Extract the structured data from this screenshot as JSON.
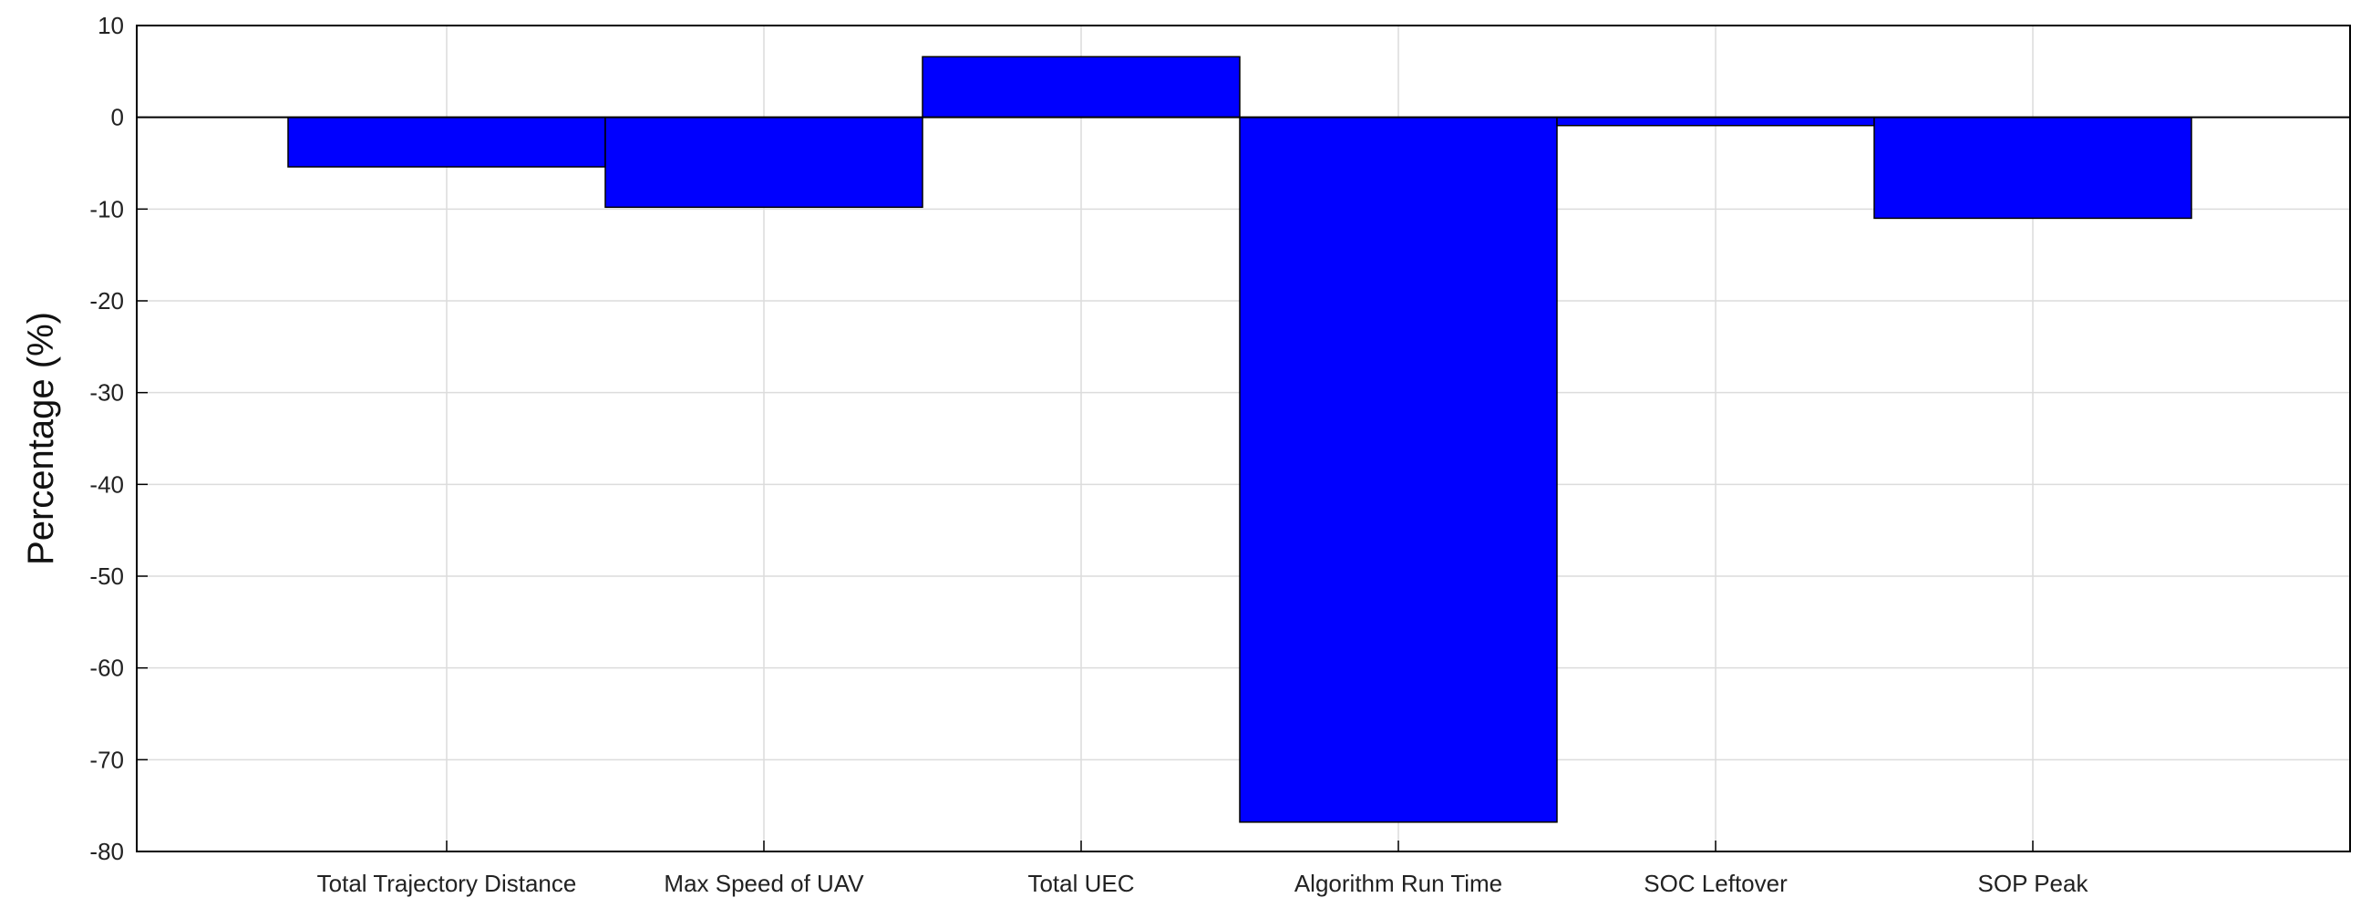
{
  "chart_data": {
    "type": "bar",
    "title": "",
    "xlabel": "",
    "ylabel": "Percentage (%)",
    "categories": [
      "Total Trajectory Distance",
      "Max Speed of UAV",
      "Total UEC",
      "Algorithm Run Time",
      "SOC Leftover",
      "SOP Peak"
    ],
    "values": [
      -5.4,
      -9.8,
      6.6,
      -76.8,
      -0.9,
      -11.0
    ],
    "ylim": [
      -80,
      10
    ],
    "yticks": [
      "10",
      "0",
      "-10",
      "-20",
      "-30",
      "-40",
      "-50",
      "-60",
      "-70",
      "-80"
    ],
    "grid": true,
    "bar_color": "#0000ff",
    "bar_edge_color": "#000000",
    "grid_color": "#dcdcdc"
  }
}
